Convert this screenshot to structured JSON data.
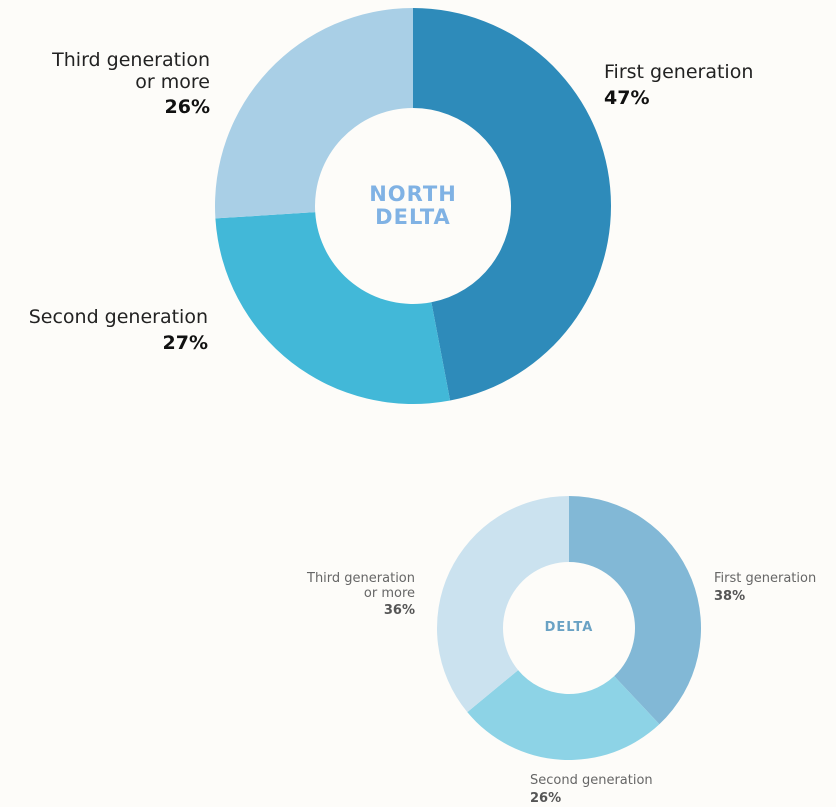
{
  "chart_data": [
    {
      "type": "pie",
      "center_label": "NORTH DELTA",
      "categories": [
        "First generation",
        "Second generation",
        "Third generation or more"
      ],
      "values": [
        47,
        27,
        26
      ],
      "value_labels": [
        "47%",
        "27%",
        "26%"
      ],
      "colors": [
        "#2e8bba",
        "#42b8d8",
        "#a9cfe6"
      ]
    },
    {
      "type": "pie",
      "center_label": "DELTA",
      "categories": [
        "First generation",
        "Second generation",
        "Third generation or more"
      ],
      "values": [
        38,
        26,
        36
      ],
      "value_labels": [
        "38%",
        "26%",
        "36%"
      ],
      "colors": [
        "#82b8d6",
        "#8dd3e6",
        "#cbe2ef"
      ]
    }
  ]
}
